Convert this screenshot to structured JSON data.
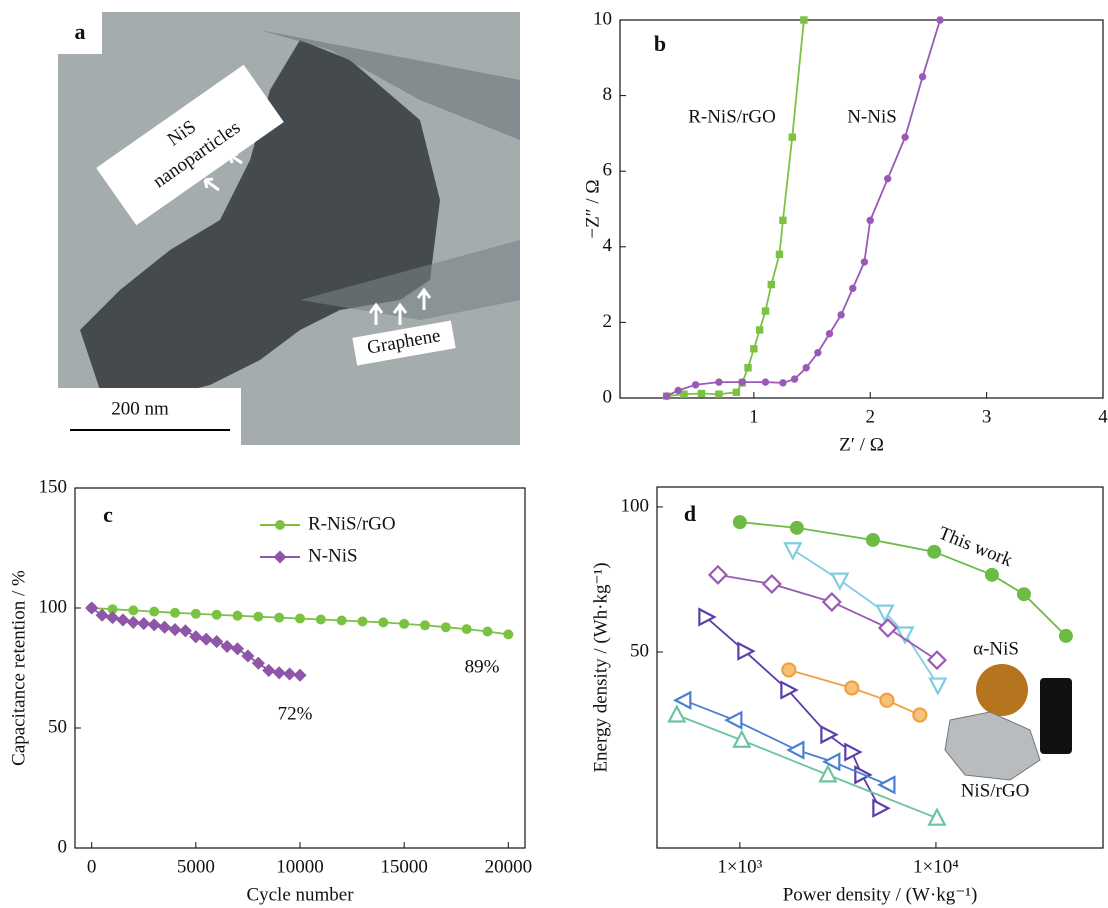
{
  "image_panel": {
    "panel": "a",
    "particles_label": [
      "NiS",
      "nanoparticles"
    ],
    "graphene_label": "Graphene",
    "scale_bar": "200 nm"
  },
  "chart_data": [
    {
      "type": "line",
      "panel": "b",
      "xlabel": "Z′ / Ω",
      "ylabel": "−Z″ / Ω",
      "xlim": [
        -0.15,
        4
      ],
      "xticks": [
        1,
        2,
        3,
        4
      ],
      "ylim": [
        0,
        10
      ],
      "yticks": [
        0,
        2,
        4,
        6,
        8,
        10
      ],
      "direct_labels": true,
      "series": [
        {
          "name": "R-NiS/rGO",
          "color": "#7cc242",
          "marker": "square",
          "x": [
            0.25,
            0.4,
            0.55,
            0.7,
            0.85,
            0.9,
            0.95,
            1.0,
            1.05,
            1.1,
            1.15,
            1.22,
            1.25,
            1.33,
            1.43
          ],
          "values": [
            0.05,
            0.1,
            0.12,
            0.1,
            0.15,
            0.4,
            0.8,
            1.3,
            1.8,
            2.3,
            3.0,
            3.8,
            4.7,
            6.9,
            10
          ]
        },
        {
          "name": "N-NiS",
          "color": "#9b59b6",
          "marker": "circle",
          "x": [
            0.25,
            0.35,
            0.5,
            0.7,
            0.9,
            1.1,
            1.25,
            1.35,
            1.45,
            1.55,
            1.65,
            1.75,
            1.85,
            1.95,
            2.0,
            2.15,
            2.3,
            2.45,
            2.6
          ],
          "values": [
            0.05,
            0.2,
            0.35,
            0.42,
            0.42,
            0.42,
            0.4,
            0.5,
            0.8,
            1.2,
            1.7,
            2.2,
            2.9,
            3.6,
            4.7,
            5.8,
            6.9,
            8.5,
            10
          ]
        }
      ]
    },
    {
      "type": "line",
      "panel": "c",
      "xlabel": "Cycle number",
      "ylabel": "Capacitance retention / %",
      "xlim": [
        -800,
        20800
      ],
      "xticks": [
        0,
        5000,
        10000,
        15000,
        20000
      ],
      "ylim": [
        0,
        150
      ],
      "yticks": [
        0,
        50,
        100,
        150
      ],
      "legend": "top",
      "series": [
        {
          "name": "R-NiS/rGO",
          "color": "#7cc242",
          "marker": "circle",
          "x": [
            0,
            1000,
            2000,
            3000,
            4000,
            5000,
            6000,
            7000,
            8000,
            9000,
            10000,
            11000,
            12000,
            13000,
            14000,
            15000,
            16000,
            17000,
            18000,
            19000,
            20000
          ],
          "values": [
            100,
            99.5,
            99,
            98.5,
            98,
            97.6,
            97.2,
            96.8,
            96.4,
            96,
            95.6,
            95.2,
            94.8,
            94.4,
            94,
            93.4,
            92.8,
            92,
            91.2,
            90.2,
            89
          ]
        },
        {
          "name": "N-NiS",
          "color": "#8e55a8",
          "marker": "diamond",
          "x": [
            0,
            500,
            1000,
            1500,
            2000,
            2500,
            3000,
            3500,
            4000,
            4500,
            5000,
            5500,
            6000,
            6500,
            7000,
            7500,
            8000,
            8500,
            9000,
            9500,
            10000
          ],
          "values": [
            100,
            97,
            96,
            95,
            94,
            93.5,
            93,
            92,
            91,
            90.5,
            88,
            87,
            86,
            84,
            83,
            80,
            77,
            74,
            73,
            72.5,
            72
          ]
        }
      ],
      "annotations": [
        "89%",
        "72%"
      ]
    },
    {
      "type": "line",
      "panel": "d",
      "xlabel": "Power density / (W·kg⁻¹)",
      "ylabel": "Energy density / (Wh·kg⁻¹)",
      "xlog": true,
      "ylog": true,
      "xlim": [
        378,
        71100
      ],
      "xticks": [
        {
          "value": 1000,
          "label": "1×10³"
        },
        {
          "value": 10000,
          "label": "1×10⁴"
        }
      ],
      "ylim": [
        19.6,
        110
      ],
      "yticks": [
        50,
        100
      ],
      "direct_labels": true,
      "series": [
        {
          "name": "This work",
          "color": "#6dbb45",
          "marker": "circle",
          "x": [
            1000,
            1954,
            4770,
            9800,
            19300,
            28100,
            46000
          ],
          "values": [
            93,
            90.5,
            85.4,
            80.7,
            72.3,
            65.9,
            54.0
          ]
        },
        {
          "color": "#7fcde0",
          "marker": "triangle-down",
          "x": [
            1862,
            3236,
            5495,
            6950,
            10230
          ],
          "values": [
            81.5,
            70.5,
            60.5,
            54.5,
            42.7
          ]
        },
        {
          "color": "#9b59b6",
          "marker": "diamond",
          "x": [
            773,
            1456,
            2945,
            5690,
            10120
          ],
          "values": [
            72.3,
            69.2,
            63.5,
            56.1,
            48.1
          ]
        },
        {
          "color": "#5b3fa8",
          "marker": "triangle-right",
          "x": [
            671,
            1061,
            1758,
            2812,
            3724,
            4188,
            5176
          ],
          "values": [
            59.1,
            50.2,
            41.7,
            33.7,
            31.0,
            27.8,
            23.7
          ]
        },
        {
          "color": "#f0a040",
          "marker": "circle",
          "x": [
            1778,
            3724,
            5623,
            8279
          ],
          "values": [
            45.9,
            42.1,
            39.7,
            37.0
          ]
        },
        {
          "color": "#4a7fd4",
          "marker": "triangle-left",
          "x": [
            518,
            943,
            1954,
            2979,
            5690
          ],
          "values": [
            39.7,
            36.1,
            31.3,
            29.6,
            26.5
          ]
        },
        {
          "color": "#6cc4a0",
          "marker": "triangle-up",
          "x": [
            477,
            1023,
            2812,
            10120
          ],
          "values": [
            37.0,
            32.8,
            27.8,
            22.6
          ]
        }
      ],
      "annotations": [
        "α-NiS",
        "NiS/rGO"
      ]
    }
  ]
}
